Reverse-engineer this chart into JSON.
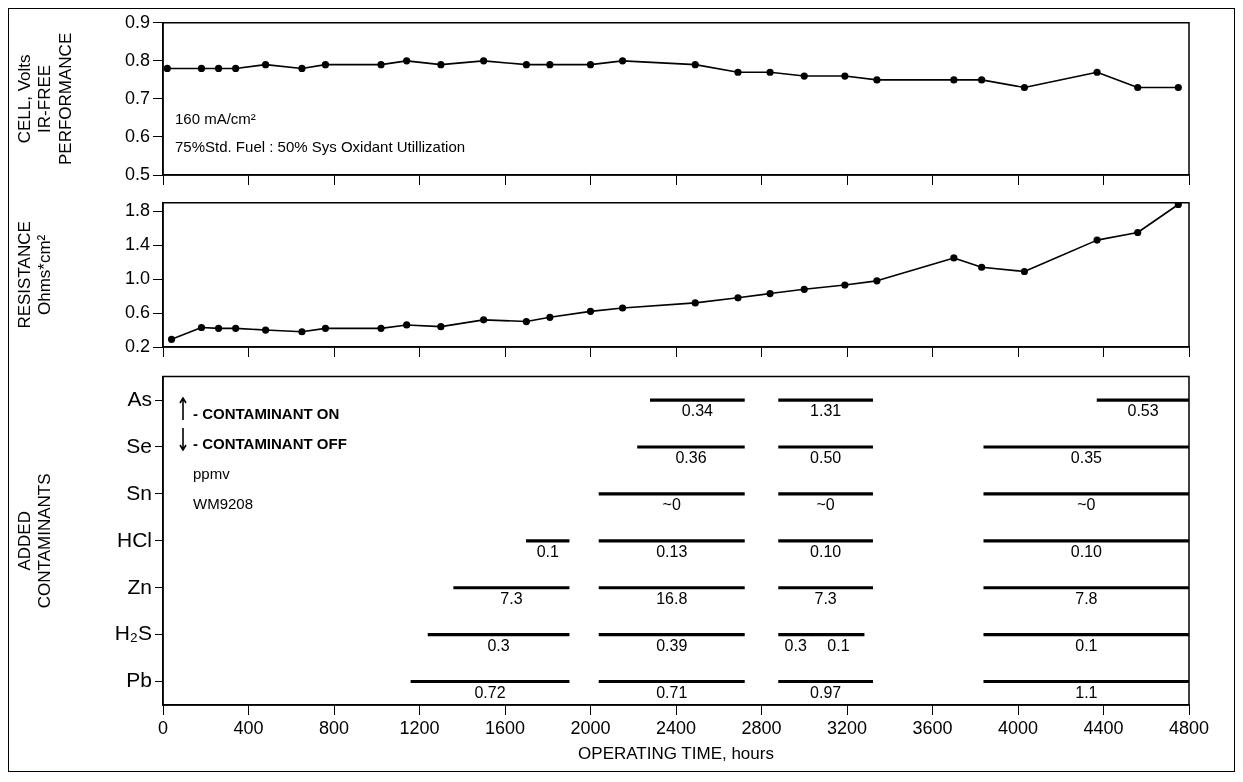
{
  "chart_data": [
    {
      "type": "line",
      "ylabel": "CELL, Volts\nIR-FREE\nPERFORMANCE",
      "x": [
        20,
        180,
        260,
        340,
        480,
        650,
        760,
        1020,
        1140,
        1300,
        1500,
        1700,
        1810,
        2000,
        2150,
        2490,
        2690,
        2840,
        3000,
        3190,
        3340,
        3700,
        3830,
        4030,
        4370,
        4560,
        4750
      ],
      "series": [
        {
          "color": "#000000",
          "values": [
            0.78,
            0.78,
            0.78,
            0.78,
            0.79,
            0.78,
            0.79,
            0.79,
            0.8,
            0.79,
            0.8,
            0.79,
            0.79,
            0.79,
            0.8,
            0.79,
            0.77,
            0.77,
            0.76,
            0.76,
            0.75,
            0.75,
            0.75,
            0.73,
            0.77,
            0.73,
            0.73
          ]
        }
      ],
      "xlim": [
        0,
        4800
      ],
      "xticks": [
        0,
        400,
        800,
        1200,
        1600,
        2000,
        2400,
        2800,
        3200,
        3600,
        4000,
        4400,
        4800
      ],
      "ylim": [
        0.5,
        0.9
      ],
      "yticks": [
        0.5,
        0.6,
        0.7,
        0.8,
        0.9
      ],
      "tick_labels": "y",
      "grid": false,
      "legend": false,
      "marker": "circle",
      "line_style": "solid",
      "annotations": [
        "160 mA/cm²",
        "75%Std. Fuel : 50% Sys Oxidant Utillization"
      ]
    },
    {
      "type": "line",
      "ylabel": "RESISTANCE\nOhms*cm²",
      "x": [
        40,
        180,
        260,
        340,
        480,
        650,
        760,
        1020,
        1140,
        1300,
        1500,
        1700,
        1810,
        2000,
        2150,
        2490,
        2690,
        2840,
        3000,
        3190,
        3340,
        3700,
        3830,
        4030,
        4370,
        4560,
        4750
      ],
      "series": [
        {
          "color": "#000000",
          "values": [
            0.29,
            0.43,
            0.42,
            0.42,
            0.4,
            0.38,
            0.42,
            0.42,
            0.46,
            0.44,
            0.52,
            0.5,
            0.55,
            0.62,
            0.66,
            0.72,
            0.78,
            0.83,
            0.88,
            0.93,
            0.98,
            1.25,
            1.14,
            1.09,
            1.46,
            1.55,
            1.88
          ]
        }
      ],
      "xlim": [
        0,
        4800
      ],
      "xticks": [
        0,
        400,
        800,
        1200,
        1600,
        2000,
        2400,
        2800,
        3200,
        3600,
        4000,
        4400,
        4800
      ],
      "ylim": [
        0.2,
        1.9
      ],
      "yticks": [
        0.2,
        0.6,
        {
          "value": 1.0,
          "label": "1.0"
        },
        1.4,
        1.8
      ],
      "tick_labels": "y",
      "grid": false,
      "legend": false,
      "marker": "circle",
      "line_style": "solid"
    },
    {
      "type": "bar",
      "orientation": "horizontal",
      "xlabel": "OPERATING TIME, hours",
      "ylabel": "ADDED\nCONTAMINANTS",
      "categories": [
        "As",
        "Se",
        "Sn",
        "HCl",
        "Zn",
        "H₂S",
        "Pb"
      ],
      "series": [
        {
          "color": "#000000",
          "base": [
            null,
            null,
            null,
            1700,
            1360,
            1240,
            1160
          ],
          "values": [
            null,
            null,
            null,
            200,
            540,
            660,
            740
          ]
        },
        {
          "color": "#000000",
          "base": [
            2280,
            2220,
            2040,
            2040,
            2040,
            2040,
            2040
          ],
          "values": [
            440,
            500,
            680,
            680,
            680,
            680,
            680
          ]
        },
        {
          "color": "#000000",
          "base": [
            2880,
            2880,
            2880,
            2880,
            2880,
            2880,
            2880
          ],
          "values": [
            440,
            440,
            440,
            440,
            440,
            160,
            440
          ]
        },
        {
          "color": "#000000",
          "base": [
            null,
            null,
            null,
            null,
            null,
            3040,
            null
          ],
          "values": [
            null,
            null,
            null,
            null,
            null,
            240,
            null
          ]
        },
        {
          "color": "#000000",
          "base": [
            4370,
            3840,
            3840,
            3840,
            3840,
            3840,
            3840
          ],
          "values": [
            430,
            960,
            960,
            960,
            960,
            960,
            960
          ]
        }
      ],
      "xlim": [
        0,
        4800
      ],
      "xticks": [
        0,
        400,
        800,
        1200,
        1600,
        2000,
        2400,
        2800,
        3200,
        3600,
        4000,
        4400,
        4800
      ],
      "grid": false,
      "legend": false,
      "annotations": [
        "- CONTAMINANT ON",
        "- CONTAMINANT OFF",
        "ppmv",
        "WM9208",
        {
          "text": "0.1",
          "x": 1800,
          "y": "HCl"
        },
        {
          "text": "7.3",
          "x": 1630,
          "y": "Zn"
        },
        {
          "text": "0.3",
          "x": 1570,
          "y": "H₂S"
        },
        {
          "text": "0.72",
          "x": 1530,
          "y": "Pb"
        },
        {
          "text": "0.34",
          "x": 2500,
          "y": "As"
        },
        {
          "text": "0.36",
          "x": 2470,
          "y": "Se"
        },
        {
          "text": "~0",
          "x": 2380,
          "y": "Sn"
        },
        {
          "text": "0.13",
          "x": 2380,
          "y": "HCl"
        },
        {
          "text": "16.8",
          "x": 2380,
          "y": "Zn"
        },
        {
          "text": "0.39",
          "x": 2380,
          "y": "H₂S"
        },
        {
          "text": "0.71",
          "x": 2380,
          "y": "Pb"
        },
        {
          "text": "1.31",
          "x": 3100,
          "y": "As"
        },
        {
          "text": "0.50",
          "x": 3100,
          "y": "Se"
        },
        {
          "text": "~0",
          "x": 3100,
          "y": "Sn"
        },
        {
          "text": "0.10",
          "x": 3100,
          "y": "HCl"
        },
        {
          "text": "7.3",
          "x": 3100,
          "y": "Zn"
        },
        {
          "text": "0.3",
          "x": 2960,
          "y": "H₂S"
        },
        {
          "text": "0.97",
          "x": 3100,
          "y": "Pb"
        },
        {
          "text": "0.1",
          "x": 3160,
          "y": "H₂S"
        },
        {
          "text": "0.53",
          "x": 4585,
          "y": "As"
        },
        {
          "text": "0.35",
          "x": 4320,
          "y": "Se"
        },
        {
          "text": "~0",
          "x": 4320,
          "y": "Sn"
        },
        {
          "text": "0.10",
          "x": 4320,
          "y": "HCl"
        },
        {
          "text": "7.8",
          "x": 4320,
          "y": "Zn"
        },
        {
          "text": "0.1",
          "x": 4320,
          "y": "H₂S"
        },
        {
          "text": "1.1",
          "x": 4320,
          "y": "Pb"
        }
      ]
    }
  ]
}
